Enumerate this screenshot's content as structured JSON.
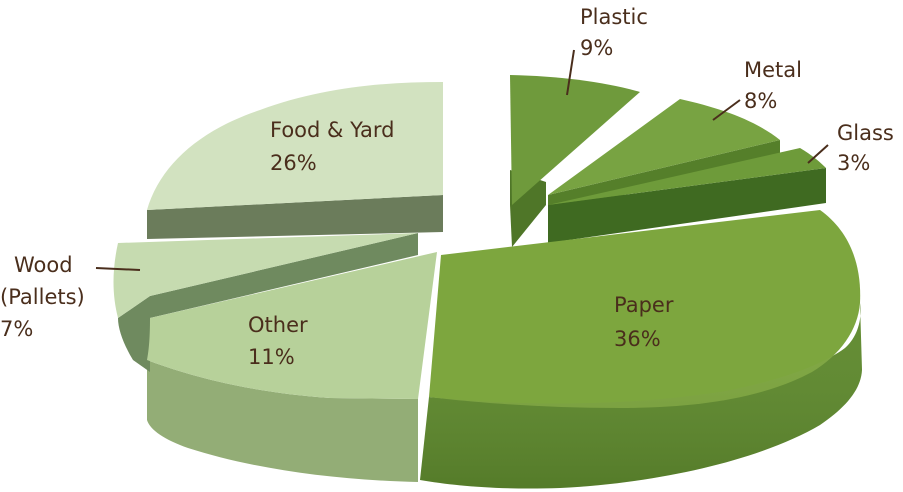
{
  "chart_data": {
    "type": "pie",
    "title": "",
    "style": "3d-exploded",
    "slices": [
      {
        "label": "Paper",
        "value": 36,
        "value_label": "36%",
        "color": "#7da63e",
        "side": "#5f8a2e"
      },
      {
        "label": "Other",
        "value": 11,
        "value_label": "11%",
        "color": "#b7d19a",
        "side": "#93ad76"
      },
      {
        "label": "Wood (Pallets)",
        "label_lines": [
          "Wood",
          "(Pallets)"
        ],
        "value": 7,
        "value_label": "7%",
        "color": "#c6dbb0",
        "side": "#6f8a5f"
      },
      {
        "label": "Food & Yard",
        "value": 26,
        "value_label": "26%",
        "color": "#d2e2c0",
        "side": "#6b7c5b"
      },
      {
        "label": "Plastic",
        "value": 9,
        "value_label": "9%",
        "color": "#6f9a3c",
        "side": "#4f7628"
      },
      {
        "label": "Metal",
        "value": 8,
        "value_label": "8%",
        "color": "#78a342",
        "side": "#557f2a"
      },
      {
        "label": "Glass",
        "value": 3,
        "value_label": "3%",
        "color": "#6e9b3a",
        "side": "#3f6a21"
      }
    ]
  }
}
